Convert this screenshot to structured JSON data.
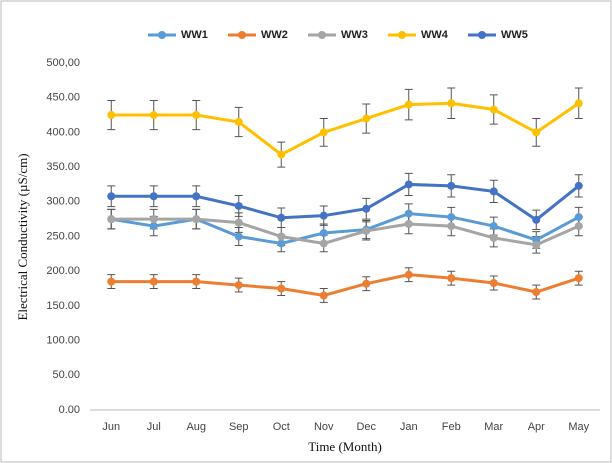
{
  "chart_data": {
    "type": "line",
    "x_label": "Time (Month)",
    "y_label": "Electrical Conductivity (µS/cm)",
    "categories": [
      "Jun",
      "Jul",
      "Aug",
      "Sep",
      "Oct",
      "Nov",
      "Dec",
      "Jan",
      "Feb",
      "Mar",
      "Apr",
      "May"
    ],
    "ylim": [
      0,
      500
    ],
    "yticks": [
      {
        "value": 0,
        "label": "0.00"
      },
      {
        "value": 50,
        "label": "50.00"
      },
      {
        "value": 100,
        "label": "100.00"
      },
      {
        "value": 150,
        "label": "150.00"
      },
      {
        "value": 200,
        "label": "200.00"
      },
      {
        "value": 250,
        "label": "250.00"
      },
      {
        "value": 300,
        "label": "300.00"
      },
      {
        "value": 350,
        "label": "350.00"
      },
      {
        "value": 400,
        "label": "400.00"
      },
      {
        "value": 450,
        "label": "450.00"
      },
      {
        "value": 500,
        "label": "500,00"
      }
    ],
    "legend": "top",
    "series": [
      {
        "name": "WW1",
        "color": "#5b9bd5",
        "values": [
          275,
          265,
          275,
          250,
          240,
          255,
          260,
          283,
          278,
          265,
          245,
          278
        ],
        "errors": [
          14,
          14,
          14,
          13,
          12,
          13,
          13,
          14,
          14,
          13,
          12,
          14
        ]
      },
      {
        "name": "WW2",
        "color": "#ed7d31",
        "values": [
          185,
          185,
          185,
          180,
          175,
          165,
          182,
          195,
          190,
          183,
          170,
          190
        ],
        "errors": [
          10,
          10,
          10,
          10,
          10,
          10,
          10,
          10,
          10,
          10,
          10,
          10
        ]
      },
      {
        "name": "WW3",
        "color": "#a5a5a5",
        "values": [
          275,
          275,
          275,
          270,
          250,
          240,
          258,
          268,
          265,
          248,
          238,
          265
        ],
        "errors": [
          14,
          14,
          14,
          14,
          13,
          12,
          13,
          14,
          14,
          13,
          12,
          14
        ]
      },
      {
        "name": "WW4",
        "color": "#ffc000",
        "values": [
          425,
          425,
          425,
          415,
          368,
          400,
          420,
          440,
          442,
          433,
          400,
          442
        ],
        "errors": [
          21,
          21,
          21,
          21,
          18,
          20,
          21,
          22,
          22,
          21,
          20,
          22
        ]
      },
      {
        "name": "WW5",
        "color": "#4472c4",
        "values": [
          308,
          308,
          308,
          294,
          277,
          280,
          290,
          325,
          323,
          315,
          274,
          323
        ],
        "errors": [
          15,
          15,
          15,
          15,
          14,
          14,
          15,
          16,
          16,
          16,
          14,
          16
        ]
      }
    ]
  }
}
